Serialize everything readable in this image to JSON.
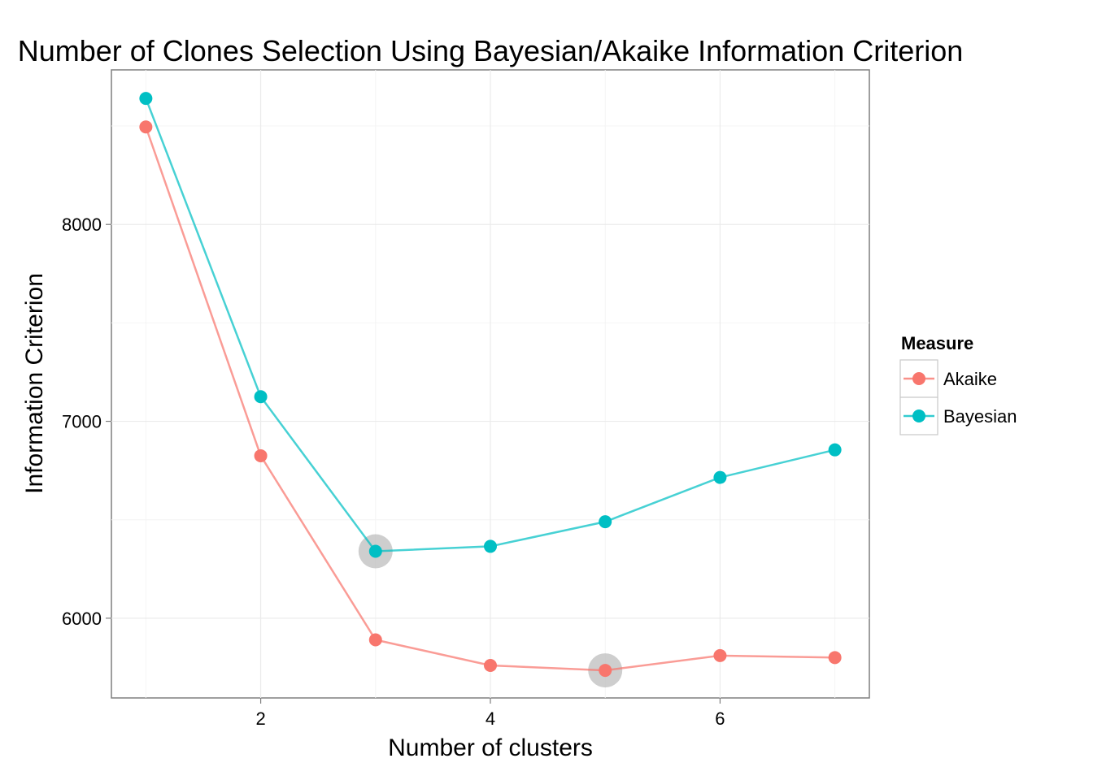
{
  "chart_data": {
    "type": "line",
    "title": "Number of Clones Selection Using Bayesian/Akaike Information Criterion",
    "xlabel": "Number of clusters",
    "ylabel": "Information Criterion",
    "x": [
      1,
      2,
      3,
      4,
      5,
      6,
      7
    ],
    "xlim": [
      0.7,
      7.3
    ],
    "ylim": [
      5595,
      8785
    ],
    "x_ticks": [
      2,
      4,
      6
    ],
    "y_ticks": [
      6000,
      7000,
      8000
    ],
    "x_tick_labels": [
      "2",
      "4",
      "6"
    ],
    "y_tick_labels": [
      "6000",
      "7000",
      "8000"
    ],
    "grid": true,
    "legend": {
      "title": "Measure",
      "position": "right"
    },
    "series": [
      {
        "name": "Akaike",
        "color": "#F8766D",
        "values": [
          8495,
          6825,
          5890,
          5760,
          5735,
          5810,
          5800
        ]
      },
      {
        "name": "Bayesian",
        "color": "#00BFC4",
        "values": [
          8640,
          7125,
          6340,
          6365,
          6490,
          6715,
          6855
        ]
      }
    ],
    "highlighted_minima": [
      {
        "series": "Bayesian",
        "x": 3,
        "y": 6340
      },
      {
        "series": "Akaike",
        "x": 5,
        "y": 5735
      }
    ]
  }
}
